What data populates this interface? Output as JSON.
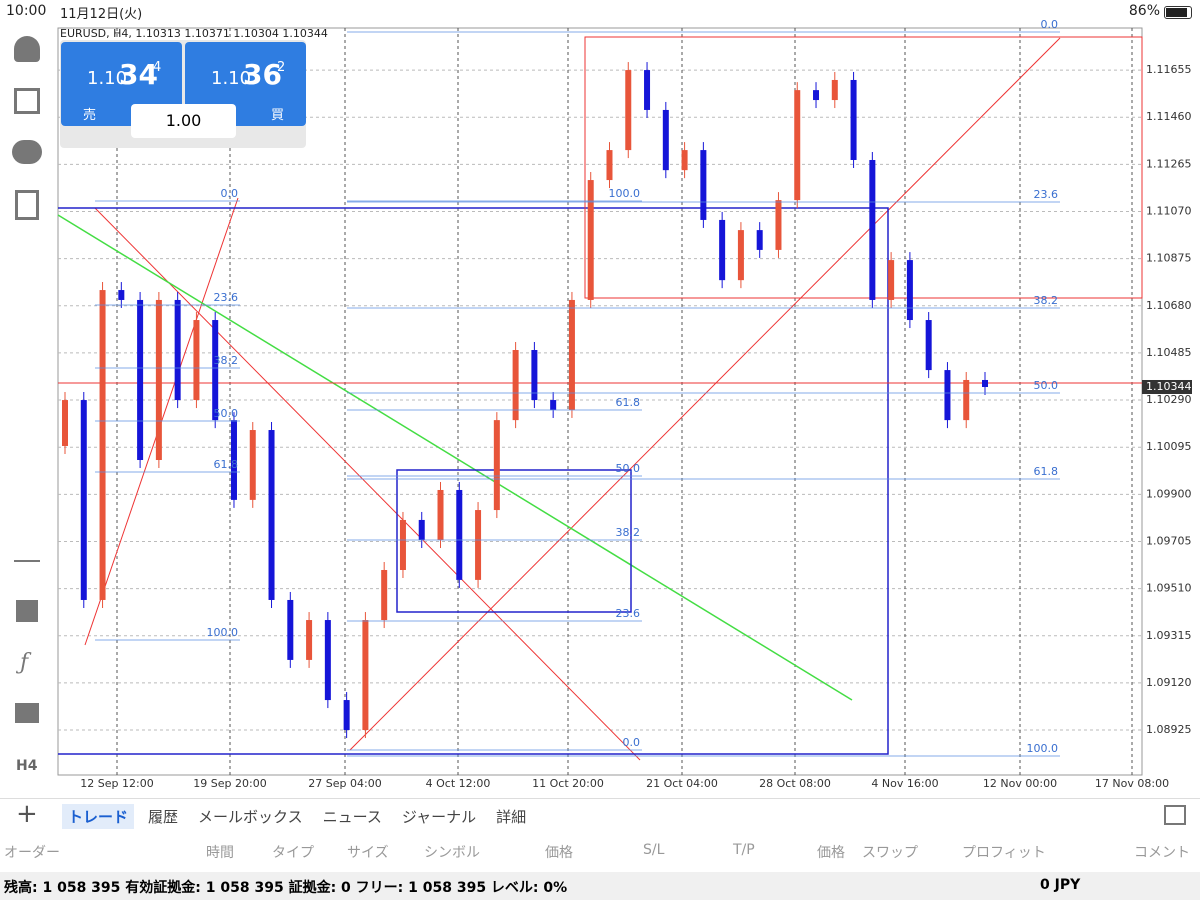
{
  "status_bar": {
    "time": "10:00",
    "date": "11月12日(火)",
    "battery": "86%"
  },
  "chart": {
    "type": "candlestick",
    "symbol_info": "EURUSD, H4, 1.10313 1.10371 1.10304 1.10344",
    "ylim": [
      1.08739,
      1.11829
    ],
    "yticks": [
      1.11655,
      {
        "value": 1.1146,
        "label": "1.11460"
      },
      1.11265,
      {
        "value": 1.1107,
        "label": "1.11070"
      },
      1.10875,
      {
        "value": 1.1068,
        "label": "1.10680"
      },
      1.10485,
      {
        "value": 1.1029,
        "label": "1.10290"
      },
      1.10095,
      {
        "value": 1.099,
        "label": "1.09900"
      },
      1.09705,
      {
        "value": 1.0951,
        "label": "1.09510"
      },
      1.09315,
      {
        "value": 1.0912,
        "label": "1.09120"
      },
      1.08925
    ],
    "x_labels": [
      "12 Sep 12:00",
      "19 Sep 20:00",
      "27 Sep 04:00",
      "4 Oct 12:00",
      "11 Oct 20:00",
      "21 Oct 04:00",
      "28 Oct 08:00",
      "4 Nov 16:00",
      "12 Nov 00:00",
      "17 Nov 08:00"
    ],
    "up_color": "#e8553a",
    "down_color": "#1515d8",
    "open": [
      1.101,
      1.1029,
      1.09463,
      1.10745,
      1.10704,
      1.10042,
      1.10704,
      1.1029,
      1.10621,
      1.10207,
      1.09877,
      1.10166,
      1.09463,
      1.09215,
      1.0938,
      1.09049,
      1.08925,
      1.0938,
      1.09587,
      1.09794,
      1.09711,
      1.09918,
      1.09546,
      1.09835,
      1.10207,
      1.10497,
      1.1029,
      1.10249,
      1.10704,
      1.112,
      1.11324,
      1.11655,
      1.1149,
      1.11241,
      1.11324,
      1.11035,
      1.10786,
      1.10993,
      1.10911,
      1.11117,
      1.11572,
      1.11531,
      1.11614,
      1.11283,
      1.10704,
      1.10869,
      1.10621,
      1.10414,
      1.10207,
      1.10373
    ],
    "close": [
      1.1029,
      1.09463,
      1.10745,
      1.10704,
      1.10042,
      1.10704,
      1.1029,
      1.10621,
      1.10207,
      1.09877,
      1.10166,
      1.09463,
      1.09215,
      1.0938,
      1.09049,
      1.08925,
      1.0938,
      1.09587,
      1.09794,
      1.09711,
      1.09918,
      1.09546,
      1.09835,
      1.10207,
      1.10497,
      1.1029,
      1.10249,
      1.10704,
      1.112,
      1.11324,
      1.11655,
      1.1149,
      1.11241,
      1.11324,
      1.11035,
      1.10786,
      1.10993,
      1.10911,
      1.11117,
      1.11572,
      1.11531,
      1.11614,
      1.11283,
      1.10704,
      1.10869,
      1.10621,
      1.10414,
      1.10207,
      1.10373,
      1.10344
    ],
    "current_price": 1.10344,
    "fib_right": [
      "0.0",
      "23.6",
      "38.2",
      "50.0",
      "61.8",
      "100.0"
    ],
    "fib_left": [
      "0.0",
      "23.6",
      "38.2",
      "50.0",
      "61.8",
      "100.0"
    ],
    "fib_box": [
      "100.0",
      "61.8",
      "50.0",
      "38.2",
      "23.6",
      "0.0"
    ]
  },
  "price_panel": {
    "sell_big": "1.10",
    "sell_pips": "34",
    "sell_frac": "4",
    "sell_label": "売",
    "buy_big": "1.10",
    "buy_pips": "36",
    "buy_frac": "2",
    "buy_label": "買",
    "volume": "1.00"
  },
  "toolbar": {
    "timeframe": "H4"
  },
  "tabs": [
    "トレード",
    "履歴",
    "メールボックス",
    "ニュース",
    "ジャーナル",
    "詳細"
  ],
  "columns": [
    "オーダー",
    "時間",
    "タイプ",
    "サイズ",
    "シンボル",
    "価格",
    "S/L",
    "T/P",
    "価格",
    "スワップ",
    "プロフィット",
    "コメント"
  ],
  "account": {
    "summary": "残高: 1 058 395 有効証拠金: 1 058 395 証拠金: 0 フリー: 1 058 395 レベル: 0%",
    "profit": "0  JPY"
  }
}
